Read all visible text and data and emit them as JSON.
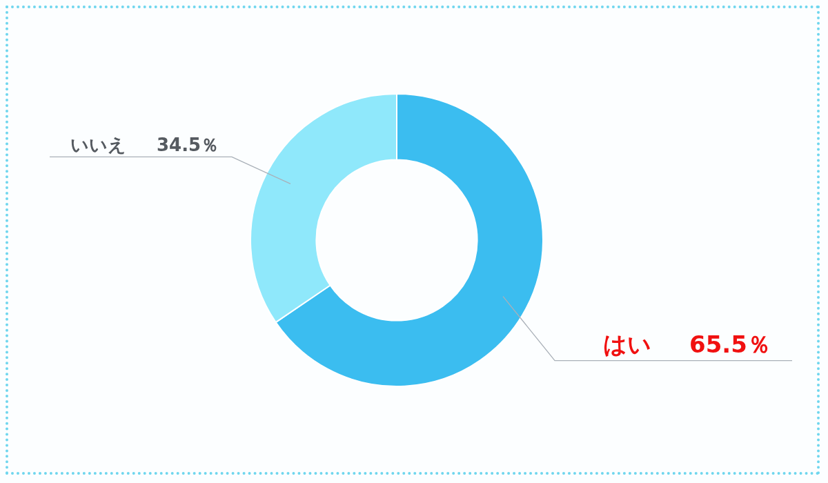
{
  "chart_data": {
    "type": "donut",
    "categories": [
      "はい",
      "いいえ"
    ],
    "values": [
      65.5,
      34.5
    ],
    "colors": [
      "#3bbdf0",
      "#8fe8fb"
    ],
    "value_labels": [
      "65.5％",
      "34.5％"
    ],
    "legend": false
  }
}
